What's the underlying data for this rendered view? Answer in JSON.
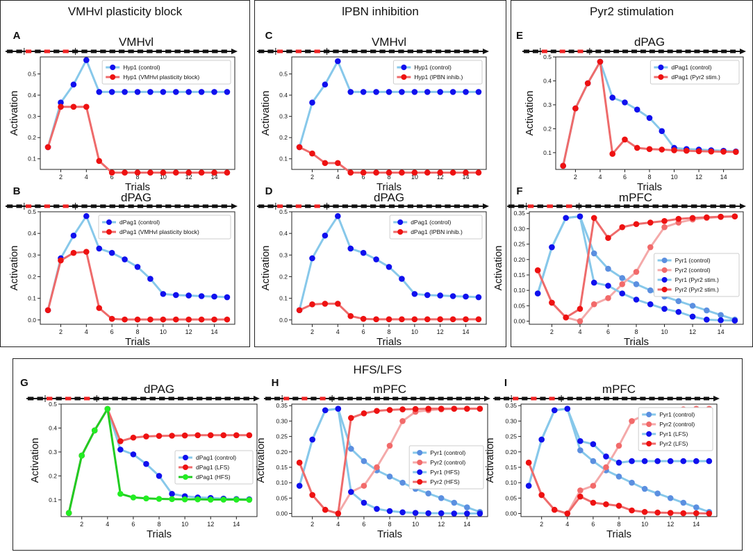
{
  "sections": {
    "vmhvl_block": "VMHvl plasticity block",
    "lpbn": "lPBN inhibition",
    "pyr2": "Pyr2 stimulation",
    "hfs_lfs": "HFS/LFS"
  },
  "colors": {
    "control_line": "#87c8ea",
    "control_marker": "#1010ee",
    "exp_line": "#ee6b6b",
    "exp_marker": "#ee1111",
    "pyr1_ctrl_line": "#87c8ea",
    "pyr1_ctrl_marker": "#5b8fe0",
    "pyr2_ctrl_line": "#f4a9a9",
    "pyr2_ctrl_marker": "#f26a6a",
    "green_line": "#22cc22",
    "green_marker": "#22ee22",
    "black": "#111111",
    "red_segment": "#ee2222"
  },
  "chart_data": [
    {
      "panel": "A",
      "type": "line",
      "title": "VMHvl",
      "xlabel": "Trials",
      "ylabel": "Activation",
      "x": [
        1,
        2,
        3,
        4,
        5,
        6,
        7,
        8,
        9,
        10,
        11,
        12,
        13,
        14,
        15
      ],
      "xticks": [
        2,
        4,
        6,
        8,
        10,
        12,
        14
      ],
      "ylim": [
        0.05,
        0.58
      ],
      "yticks": [
        0.1,
        0.2,
        0.3,
        0.4,
        0.5
      ],
      "ytick_labels": [
        "0.1",
        "0.2",
        "0.3",
        "0.4",
        "0.5"
      ],
      "legend": "top-right",
      "series": [
        {
          "name": "Hyp1 (control)",
          "style": "ctrl",
          "values": [
            0.155,
            0.365,
            0.45,
            0.565,
            0.415,
            0.415,
            0.415,
            0.415,
            0.415,
            0.415,
            0.415,
            0.415,
            0.415,
            0.415,
            0.415
          ]
        },
        {
          "name": "Hyp1 (VMHvl plasticity block)",
          "style": "exp",
          "values": [
            0.155,
            0.345,
            0.345,
            0.345,
            0.09,
            0.035,
            0.035,
            0.035,
            0.035,
            0.035,
            0.035,
            0.035,
            0.035,
            0.035,
            0.035
          ]
        }
      ]
    },
    {
      "panel": "B",
      "type": "line",
      "title": "dPAG",
      "xlabel": "Trials",
      "ylabel": "Activation",
      "x": [
        1,
        2,
        3,
        4,
        5,
        6,
        7,
        8,
        9,
        10,
        11,
        12,
        13,
        14,
        15
      ],
      "xticks": [
        2,
        4,
        6,
        8,
        10,
        12,
        14
      ],
      "ylim": [
        -0.02,
        0.5
      ],
      "yticks": [
        0.0,
        0.1,
        0.2,
        0.3,
        0.4,
        0.5
      ],
      "ytick_labels": [
        "0.0",
        "0.1",
        "0.2",
        "0.3",
        "0.4",
        "0.5"
      ],
      "legend": "top-right",
      "series": [
        {
          "name": "dPag1 (control)",
          "style": "ctrl",
          "values": [
            0.045,
            0.285,
            0.39,
            0.48,
            0.33,
            0.31,
            0.28,
            0.245,
            0.19,
            0.12,
            0.115,
            0.113,
            0.11,
            0.108,
            0.105
          ]
        },
        {
          "name": "dPag1 (VMHvl plasticity block)",
          "style": "exp",
          "values": [
            0.045,
            0.275,
            0.31,
            0.315,
            0.055,
            0.005,
            0.002,
            0.002,
            0.002,
            0.002,
            0.002,
            0.002,
            0.002,
            0.002,
            0.002
          ]
        }
      ]
    },
    {
      "panel": "C",
      "type": "line",
      "title": "VMHvl",
      "xlabel": "Trials",
      "ylabel": "Activation",
      "x": [
        1,
        2,
        3,
        4,
        5,
        6,
        7,
        8,
        9,
        10,
        11,
        12,
        13,
        14,
        15
      ],
      "xticks": [
        2,
        4,
        6,
        8,
        10,
        12,
        14
      ],
      "ylim": [
        0.05,
        0.58
      ],
      "yticks": [
        0.1,
        0.2,
        0.3,
        0.4,
        0.5
      ],
      "ytick_labels": [
        "0.1",
        "0.2",
        "0.3",
        "0.4",
        "0.5"
      ],
      "legend": "top-right",
      "series": [
        {
          "name": "Hyp1 (control)",
          "style": "ctrl",
          "values": [
            0.155,
            0.365,
            0.45,
            0.56,
            0.415,
            0.415,
            0.415,
            0.415,
            0.415,
            0.415,
            0.415,
            0.415,
            0.415,
            0.415,
            0.415
          ]
        },
        {
          "name": "Hyp1 (lPBN inhib.)",
          "style": "exp",
          "values": [
            0.155,
            0.125,
            0.08,
            0.08,
            0.035,
            0.035,
            0.035,
            0.035,
            0.035,
            0.035,
            0.035,
            0.035,
            0.035,
            0.035,
            0.035
          ]
        }
      ]
    },
    {
      "panel": "D",
      "type": "line",
      "title": "dPAG",
      "xlabel": "Trials",
      "ylabel": "Activation",
      "x": [
        1,
        2,
        3,
        4,
        5,
        6,
        7,
        8,
        9,
        10,
        11,
        12,
        13,
        14,
        15
      ],
      "xticks": [
        2,
        4,
        6,
        8,
        10,
        12,
        14
      ],
      "ylim": [
        -0.02,
        0.5
      ],
      "yticks": [
        0.0,
        0.1,
        0.2,
        0.3,
        0.4,
        0.5
      ],
      "ytick_labels": [
        "0.0",
        "0.1",
        "0.2",
        "0.3",
        "0.4",
        "0.5"
      ],
      "legend": "top-right",
      "series": [
        {
          "name": "dPag1 (control)",
          "style": "ctrl",
          "values": [
            0.045,
            0.285,
            0.39,
            0.48,
            0.33,
            0.31,
            0.28,
            0.245,
            0.19,
            0.12,
            0.115,
            0.113,
            0.11,
            0.108,
            0.105
          ]
        },
        {
          "name": "dPag1 (lPBN inhib.)",
          "style": "exp",
          "values": [
            0.045,
            0.072,
            0.075,
            0.075,
            0.018,
            0.005,
            0.003,
            0.003,
            0.003,
            0.003,
            0.003,
            0.003,
            0.003,
            0.003,
            0.003
          ]
        }
      ]
    },
    {
      "panel": "E",
      "type": "line",
      "title": "dPAG",
      "xlabel": "Trials",
      "ylabel": "Activation",
      "x": [
        1,
        2,
        3,
        4,
        5,
        6,
        7,
        8,
        9,
        10,
        11,
        12,
        13,
        14,
        15
      ],
      "xticks": [
        2,
        4,
        6,
        8,
        10,
        12,
        14
      ],
      "ylim": [
        0.03,
        0.5
      ],
      "yticks": [
        0.1,
        0.2,
        0.3,
        0.4,
        0.5
      ],
      "ytick_labels": [
        "0.1",
        "0.2",
        "0.3",
        "0.4",
        "0.5"
      ],
      "legend": "top-right",
      "series": [
        {
          "name": "dPag1 (control)",
          "style": "ctrl",
          "values": [
            0.045,
            0.285,
            0.39,
            0.48,
            0.33,
            0.31,
            0.28,
            0.245,
            0.19,
            0.12,
            0.115,
            0.113,
            0.11,
            0.108,
            0.105
          ]
        },
        {
          "name": "dPag1 (Pyr2 stim.)",
          "style": "exp",
          "values": [
            0.045,
            0.285,
            0.39,
            0.48,
            0.095,
            0.155,
            0.12,
            0.115,
            0.113,
            0.11,
            0.108,
            0.106,
            0.105,
            0.104,
            0.103
          ]
        }
      ]
    },
    {
      "panel": "F",
      "type": "line",
      "title": "mPFC",
      "xlabel": "Trials",
      "ylabel": "Activation",
      "x": [
        1,
        2,
        3,
        4,
        5,
        6,
        7,
        8,
        9,
        10,
        11,
        12,
        13,
        14,
        15
      ],
      "xticks": [
        2,
        4,
        6,
        8,
        10,
        12,
        14
      ],
      "ylim": [
        -0.01,
        0.355
      ],
      "yticks": [
        0.0,
        0.05,
        0.1,
        0.15,
        0.2,
        0.25,
        0.3,
        0.35
      ],
      "ytick_labels": [
        "0.00",
        "0.05",
        "0.10",
        "0.15",
        "0.20",
        "0.25",
        "0.30",
        "0.35"
      ],
      "legend": "center-right",
      "series": [
        {
          "name": "Pyr1 (control)",
          "style": "pyr1c",
          "values": [
            0.09,
            0.24,
            0.335,
            0.34,
            0.22,
            0.17,
            0.14,
            0.12,
            0.1,
            0.08,
            0.065,
            0.05,
            0.035,
            0.02,
            0.005
          ]
        },
        {
          "name": "Pyr2 (control)",
          "style": "pyr2c",
          "values": [
            0.165,
            0.06,
            0.012,
            0.0,
            0.055,
            0.075,
            0.12,
            0.16,
            0.24,
            0.305,
            0.32,
            0.33,
            0.335,
            0.338,
            0.34
          ]
        },
        {
          "name": "Pyr1 (Pyr2 stim.)",
          "style": "ctrl",
          "values": [
            0.09,
            0.24,
            0.335,
            0.34,
            0.125,
            0.115,
            0.09,
            0.07,
            0.055,
            0.04,
            0.03,
            0.015,
            0.005,
            0.003,
            0.002
          ]
        },
        {
          "name": "Pyr2 (Pyr2 stim.)",
          "style": "exp",
          "values": [
            0.165,
            0.06,
            0.012,
            0.04,
            0.335,
            0.27,
            0.305,
            0.315,
            0.32,
            0.325,
            0.332,
            0.335,
            0.337,
            0.339,
            0.34
          ]
        }
      ]
    },
    {
      "panel": "G",
      "type": "line",
      "title": "dPAG",
      "xlabel": "Trials",
      "ylabel": "Activation",
      "x": [
        1,
        2,
        3,
        4,
        5,
        6,
        7,
        8,
        9,
        10,
        11,
        12,
        13,
        14,
        15
      ],
      "xticks": [
        2,
        4,
        6,
        8,
        10,
        12,
        14
      ],
      "ylim": [
        0.03,
        0.5
      ],
      "yticks": [
        0.1,
        0.2,
        0.3,
        0.4,
        0.5
      ],
      "ytick_labels": [
        "0.1",
        "0.2",
        "0.3",
        "0.4",
        "0.5"
      ],
      "legend": "center-right",
      "series": [
        {
          "name": "dPag1 (control)",
          "style": "ctrl",
          "values": [
            0.045,
            0.285,
            0.39,
            0.48,
            0.31,
            0.29,
            0.25,
            0.2,
            0.125,
            0.115,
            0.11,
            0.108,
            0.105,
            0.103,
            0.102
          ]
        },
        {
          "name": "dPag1 (LFS)",
          "style": "exp",
          "values": [
            0.045,
            0.285,
            0.39,
            0.48,
            0.345,
            0.36,
            0.365,
            0.367,
            0.368,
            0.369,
            0.37,
            0.37,
            0.37,
            0.37,
            0.37
          ]
        },
        {
          "name": "dPag1 (HFS)",
          "style": "green",
          "values": [
            0.045,
            0.285,
            0.39,
            0.48,
            0.125,
            0.11,
            0.106,
            0.104,
            0.103,
            0.102,
            0.102,
            0.101,
            0.101,
            0.101,
            0.1
          ]
        }
      ]
    },
    {
      "panel": "H",
      "type": "line",
      "title": "mPFC",
      "xlabel": "Trials",
      "ylabel": "Activation",
      "x": [
        1,
        2,
        3,
        4,
        5,
        6,
        7,
        8,
        9,
        10,
        11,
        12,
        13,
        14,
        15
      ],
      "xticks": [
        2,
        4,
        6,
        8,
        10,
        12,
        14
      ],
      "ylim": [
        -0.01,
        0.355
      ],
      "yticks": [
        0.0,
        0.05,
        0.1,
        0.15,
        0.2,
        0.25,
        0.3,
        0.35
      ],
      "ytick_labels": [
        "0.00",
        "0.05",
        "0.10",
        "0.15",
        "0.20",
        "0.25",
        "0.30",
        "0.35"
      ],
      "legend": "center-right",
      "series": [
        {
          "name": "Pyr1 (control)",
          "style": "pyr1c",
          "values": [
            0.09,
            0.24,
            0.335,
            0.34,
            0.21,
            0.17,
            0.14,
            0.12,
            0.1,
            0.08,
            0.065,
            0.05,
            0.035,
            0.02,
            0.005
          ]
        },
        {
          "name": "Pyr2 (control)",
          "style": "pyr2c",
          "values": [
            0.165,
            0.06,
            0.012,
            0.0,
            0.07,
            0.09,
            0.15,
            0.22,
            0.3,
            0.33,
            0.335,
            0.338,
            0.34,
            0.34,
            0.34
          ]
        },
        {
          "name": "Pyr1 (HFS)",
          "style": "ctrl",
          "values": [
            0.09,
            0.24,
            0.335,
            0.34,
            0.07,
            0.035,
            0.015,
            0.008,
            0.004,
            0.002,
            0.001,
            0.001,
            0.0,
            0.0,
            0.0
          ]
        },
        {
          "name": "Pyr2 (HFS)",
          "style": "exp",
          "values": [
            0.165,
            0.06,
            0.012,
            0.0,
            0.31,
            0.325,
            0.333,
            0.336,
            0.338,
            0.339,
            0.34,
            0.34,
            0.34,
            0.34,
            0.34
          ]
        }
      ]
    },
    {
      "panel": "I",
      "type": "line",
      "title": "mPFC",
      "xlabel": "Trials",
      "ylabel": "Activation",
      "x": [
        1,
        2,
        3,
        4,
        5,
        6,
        7,
        8,
        9,
        10,
        11,
        12,
        13,
        14,
        15
      ],
      "xticks": [
        2,
        4,
        6,
        8,
        10,
        12,
        14
      ],
      "ylim": [
        -0.01,
        0.355
      ],
      "yticks": [
        0.0,
        0.05,
        0.1,
        0.15,
        0.2,
        0.25,
        0.3,
        0.35
      ],
      "ytick_labels": [
        "0.00",
        "0.05",
        "0.10",
        "0.15",
        "0.20",
        "0.25",
        "0.30",
        "0.35"
      ],
      "legend": "top-right",
      "series": [
        {
          "name": "Pyr1 (control)",
          "style": "pyr1c",
          "values": [
            0.09,
            0.24,
            0.335,
            0.34,
            0.205,
            0.17,
            0.14,
            0.12,
            0.1,
            0.08,
            0.065,
            0.05,
            0.035,
            0.02,
            0.005
          ]
        },
        {
          "name": "Pyr2 (control)",
          "style": "pyr2c",
          "values": [
            0.165,
            0.06,
            0.012,
            0.0,
            0.075,
            0.09,
            0.15,
            0.22,
            0.3,
            0.32,
            0.33,
            0.335,
            0.338,
            0.34,
            0.34
          ]
        },
        {
          "name": "Pyr1 (LFS)",
          "style": "ctrl",
          "values": [
            0.09,
            0.24,
            0.335,
            0.34,
            0.235,
            0.225,
            0.185,
            0.165,
            0.17,
            0.17,
            0.17,
            0.17,
            0.17,
            0.17,
            0.17
          ]
        },
        {
          "name": "Pyr2 (LFS)",
          "style": "exp",
          "values": [
            0.165,
            0.06,
            0.012,
            0.0,
            0.055,
            0.035,
            0.03,
            0.025,
            0.01,
            0.005,
            0.003,
            0.002,
            0.001,
            0.001,
            0.0
          ]
        }
      ]
    }
  ]
}
